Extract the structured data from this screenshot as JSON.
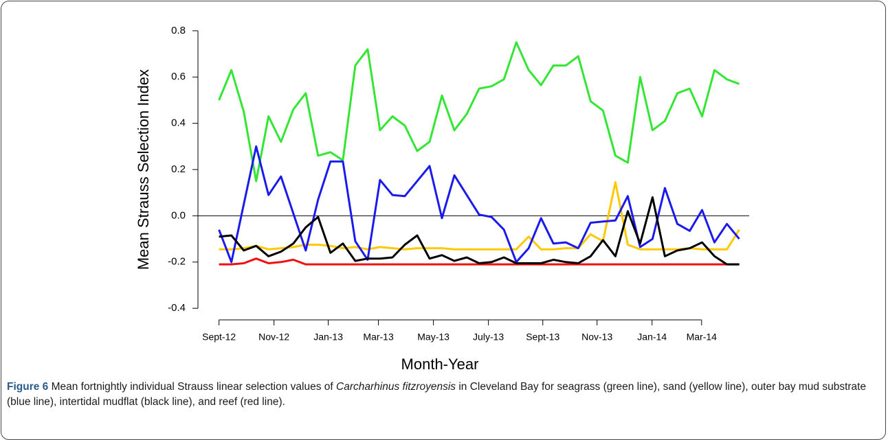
{
  "chart_data": {
    "type": "line",
    "y_label": "Mean Strauss Selection Index",
    "x_label": "Month-Year",
    "x": [
      0,
      1,
      2,
      3,
      4,
      5,
      6,
      7,
      8,
      9,
      10,
      11,
      12,
      13,
      14,
      15,
      16,
      17,
      18,
      19,
      20,
      21,
      22,
      23,
      24,
      25,
      26,
      27,
      28,
      29,
      30,
      31,
      32,
      33,
      34,
      35,
      36,
      37,
      38,
      39,
      40,
      41,
      42
    ],
    "xlim": [
      -1.7,
      42.8
    ],
    "xticks": [
      {
        "value": 0,
        "label": "Sept-12"
      },
      {
        "value": 4.44,
        "label": "Nov-12"
      },
      {
        "value": 8.82,
        "label": "Jan-13"
      },
      {
        "value": 12.87,
        "label": "Mar-13"
      },
      {
        "value": 17.31,
        "label": "May-13"
      },
      {
        "value": 21.75,
        "label": "July-13"
      },
      {
        "value": 26.14,
        "label": "Sept-13"
      },
      {
        "value": 30.52,
        "label": "Nov-13"
      },
      {
        "value": 34.96,
        "label": "Jan-14"
      },
      {
        "value": 38.96,
        "label": "Mar-14"
      }
    ],
    "ylim": [
      -0.45,
      0.85
    ],
    "yticks": [
      -0.4,
      -0.2,
      {
        "value": 0,
        "label": "0.0"
      },
      0.2,
      0.4,
      0.6,
      0.8
    ],
    "reference_line": 0,
    "series": [
      {
        "name": "seagrass",
        "color": "#33e633",
        "values": [
          0.5,
          0.63,
          0.45,
          0.15,
          0.43,
          0.32,
          0.46,
          0.53,
          0.26,
          0.275,
          0.24,
          0.65,
          0.72,
          0.37,
          0.43,
          0.39,
          0.28,
          0.32,
          0.52,
          0.37,
          0.44,
          0.55,
          0.56,
          0.59,
          0.75,
          0.63,
          0.565,
          0.65,
          0.65,
          0.69,
          0.495,
          0.455,
          0.26,
          0.23,
          0.6,
          0.37,
          0.41,
          0.53,
          0.55,
          0.43,
          0.63,
          0.59,
          0.57
        ]
      },
      {
        "name": "sand",
        "color": "#ffc800",
        "values": [
          -0.145,
          -0.145,
          -0.14,
          -0.13,
          -0.145,
          -0.14,
          -0.135,
          -0.125,
          -0.125,
          -0.13,
          -0.14,
          -0.135,
          -0.145,
          -0.135,
          -0.14,
          -0.145,
          -0.14,
          -0.14,
          -0.14,
          -0.145,
          -0.145,
          -0.145,
          -0.145,
          -0.145,
          -0.145,
          -0.09,
          -0.145,
          -0.145,
          -0.14,
          -0.14,
          -0.08,
          -0.11,
          0.145,
          -0.125,
          -0.145,
          -0.145,
          -0.145,
          -0.145,
          -0.14,
          -0.145,
          -0.145,
          -0.145,
          -0.06
        ]
      },
      {
        "name": "outer bay mud substrate",
        "color": "#1a1aee",
        "values": [
          -0.06,
          -0.2,
          0.05,
          0.3,
          0.09,
          0.17,
          0.01,
          -0.15,
          0.07,
          0.235,
          0.235,
          -0.11,
          -0.19,
          0.155,
          0.09,
          0.085,
          0.15,
          0.215,
          -0.01,
          0.175,
          0.09,
          0.005,
          -0.005,
          -0.06,
          -0.2,
          -0.14,
          -0.01,
          -0.12,
          -0.115,
          -0.14,
          -0.03,
          -0.025,
          -0.02,
          0.085,
          -0.135,
          -0.1,
          0.12,
          -0.035,
          -0.065,
          0.025,
          -0.115,
          -0.035,
          -0.1
        ]
      },
      {
        "name": "reef",
        "color": "#f01010",
        "values": [
          -0.21,
          -0.21,
          -0.205,
          -0.185,
          -0.205,
          -0.2,
          -0.19,
          -0.21,
          -0.21,
          -0.21,
          -0.21,
          -0.21,
          -0.21,
          -0.21,
          -0.21,
          -0.21,
          -0.21,
          -0.21,
          -0.21,
          -0.21,
          -0.21,
          -0.21,
          -0.21,
          -0.21,
          -0.21,
          -0.21,
          -0.21,
          -0.21,
          -0.21,
          -0.21,
          -0.21,
          -0.21,
          -0.21,
          -0.21,
          -0.21,
          -0.21,
          -0.21,
          -0.21,
          -0.21,
          -0.21,
          -0.21,
          -0.21,
          -0.21
        ]
      },
      {
        "name": "intertidal mudflat",
        "color": "#000000",
        "values": [
          -0.09,
          -0.085,
          -0.15,
          -0.13,
          -0.175,
          -0.155,
          -0.12,
          -0.05,
          -0.005,
          -0.16,
          -0.12,
          -0.195,
          -0.185,
          -0.185,
          -0.18,
          -0.125,
          -0.085,
          -0.185,
          -0.17,
          -0.195,
          -0.18,
          -0.205,
          -0.2,
          -0.18,
          -0.205,
          -0.205,
          -0.205,
          -0.19,
          -0.2,
          -0.205,
          -0.175,
          -0.105,
          -0.175,
          0.02,
          -0.12,
          0.08,
          -0.175,
          -0.15,
          -0.14,
          -0.115,
          -0.175,
          -0.21,
          -0.21
        ]
      }
    ]
  },
  "caption": {
    "label": "Figure 6",
    "text_before": " Mean fortnightly individual Strauss linear selection values of ",
    "species": "Carcharhinus fitzroyensis",
    "text_after": " in Cleveland Bay for seagrass (green line), sand (yellow line), outer bay mud substrate (blue line), intertidal mudflat (black line), and reef (red line)."
  }
}
